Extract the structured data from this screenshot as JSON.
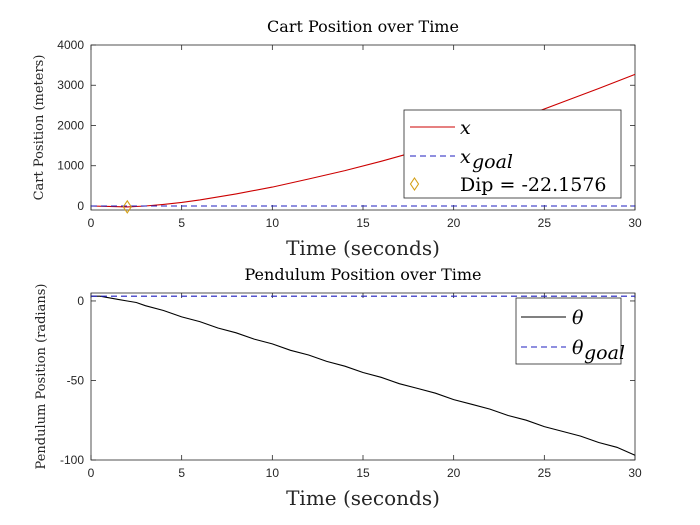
{
  "chart_data": [
    {
      "type": "line",
      "title": "Cart Position over Time",
      "xlabel": "Time (seconds)",
      "ylabel": "Cart Position (meters)",
      "xlim": [
        0,
        30
      ],
      "ylim": [
        -100,
        4000
      ],
      "xticks": [
        "0",
        "5",
        "10",
        "15",
        "20",
        "25",
        "30"
      ],
      "yticks": [
        "0",
        "1000",
        "2000",
        "3000",
        "4000"
      ],
      "legend_position": "right",
      "series": [
        {
          "name": "x",
          "color": "#cc0000",
          "style": "solid",
          "x": [
            0,
            1,
            2,
            3,
            4,
            5,
            6,
            8,
            10,
            12,
            14,
            16,
            18,
            20,
            22,
            24,
            26,
            28,
            30
          ],
          "y": [
            0,
            -10,
            -22,
            0,
            40,
            90,
            150,
            300,
            470,
            670,
            880,
            1110,
            1360,
            1630,
            1920,
            2240,
            2580,
            2920,
            3270
          ]
        },
        {
          "name": "x_goal",
          "color": "#1f1fbf",
          "style": "dashed",
          "x": [
            0,
            30
          ],
          "y": [
            0,
            0
          ]
        }
      ],
      "marker": {
        "name": "Dip = -22.1576",
        "x": 2.0,
        "y": -22.1576,
        "color": "#d4a017"
      },
      "legend": [
        {
          "label": "x",
          "sub": ""
        },
        {
          "label": "x",
          "sub": "goal"
        },
        {
          "label": "Dip = -22.1576",
          "sub": ""
        }
      ]
    },
    {
      "type": "line",
      "title": "Pendulum Position over Time",
      "xlabel": "Time (seconds)",
      "ylabel": "Pendulum Position (radians)",
      "xlim": [
        0,
        30
      ],
      "ylim": [
        -100,
        5
      ],
      "xticks": [
        "0",
        "5",
        "10",
        "15",
        "20",
        "25",
        "30"
      ],
      "yticks": [
        "0",
        "-50",
        "-100"
      ],
      "legend_position": "top-right",
      "series": [
        {
          "name": "theta",
          "color": "#000000",
          "style": "solid",
          "x": [
            0,
            0.5,
            1,
            1.5,
            2,
            2.5,
            3,
            4,
            5,
            6,
            7,
            8,
            9,
            10,
            11,
            12,
            13,
            14,
            15,
            16,
            17,
            18,
            19,
            20,
            21,
            22,
            23,
            24,
            25,
            26,
            27,
            28,
            29,
            30
          ],
          "y": [
            3,
            3,
            2,
            1,
            0,
            -1,
            -3,
            -6,
            -10,
            -13,
            -17,
            -20,
            -24,
            -27,
            -31,
            -34,
            -38,
            -41,
            -45,
            -48,
            -52,
            -55,
            -58,
            -62,
            -65,
            -68,
            -72,
            -75,
            -79,
            -82,
            -85,
            -89,
            -92,
            -97
          ]
        },
        {
          "name": "theta_goal",
          "color": "#1f1fbf",
          "style": "dashed",
          "x": [
            0,
            30
          ],
          "y": [
            3,
            3
          ]
        }
      ],
      "legend": [
        {
          "label": "θ",
          "sub": ""
        },
        {
          "label": "θ",
          "sub": "goal"
        }
      ]
    }
  ]
}
